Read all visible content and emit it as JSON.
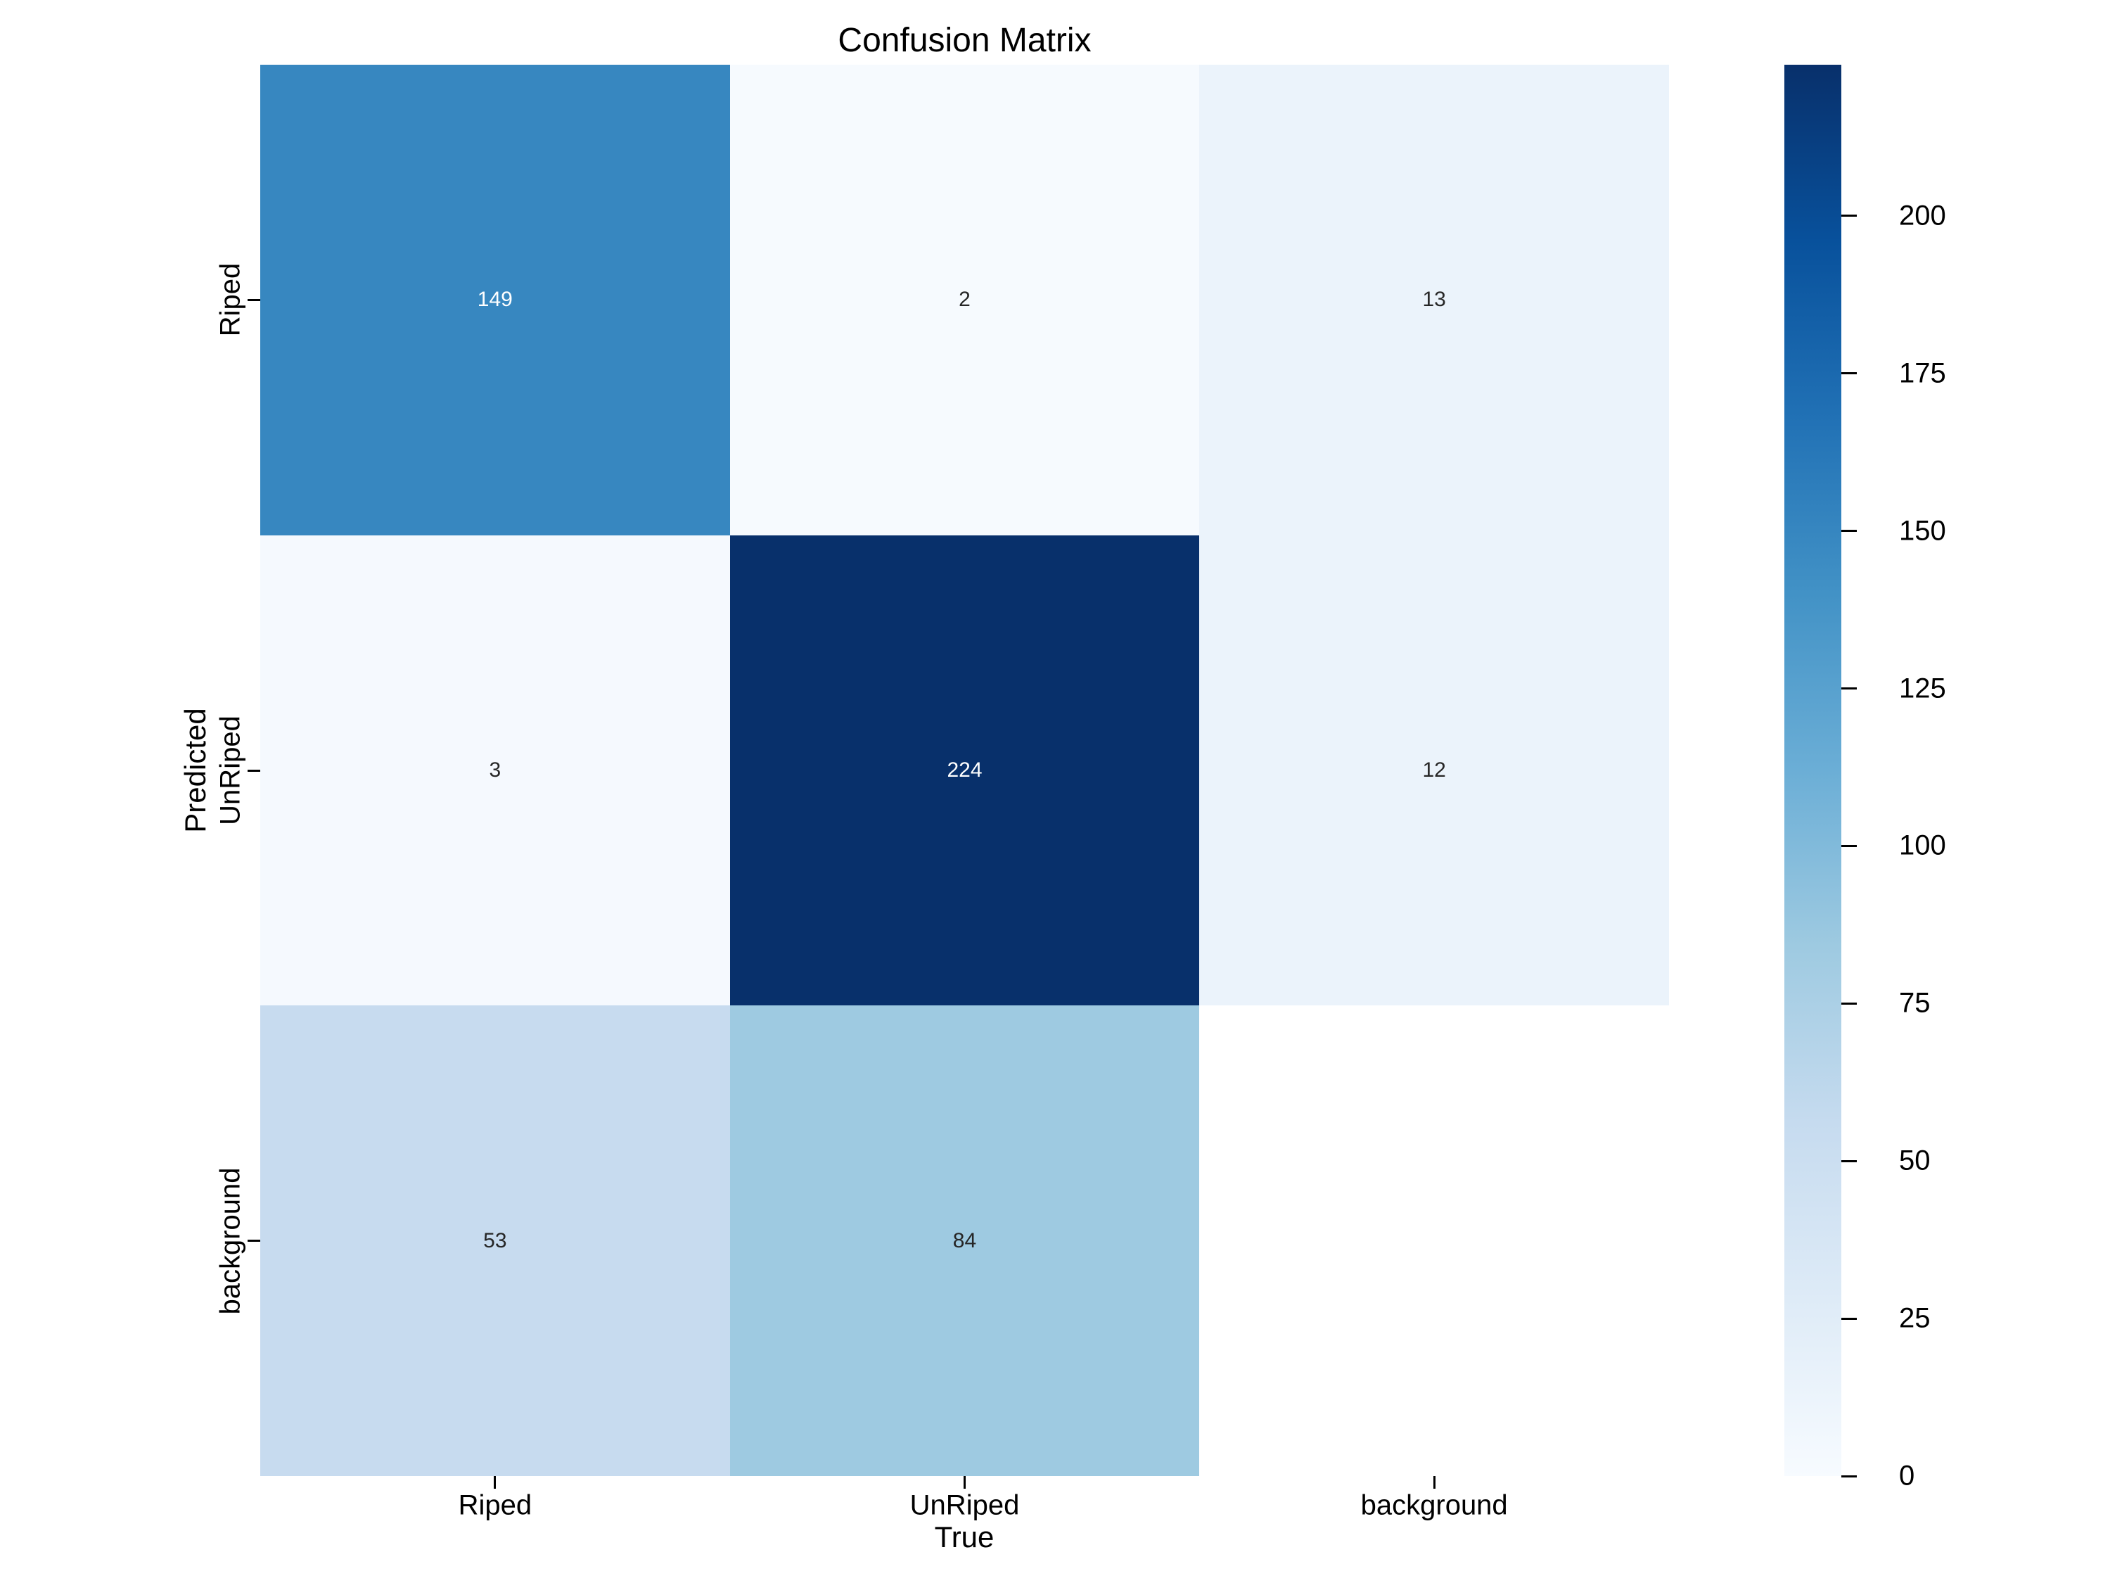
{
  "title": "Confusion Matrix",
  "chart_data": {
    "type": "heatmap",
    "title": "Confusion Matrix",
    "xlabel": "True",
    "ylabel": "Predicted",
    "x_categories": [
      "Riped",
      "UnRiped",
      "background"
    ],
    "y_categories": [
      "Riped",
      "UnRiped",
      "background"
    ],
    "matrix": [
      [
        149,
        2,
        13
      ],
      [
        3,
        224,
        12
      ],
      [
        53,
        84,
        null
      ]
    ],
    "annotations": [
      [
        "149",
        "2",
        "13"
      ],
      [
        "3",
        "224",
        "12"
      ],
      [
        "53",
        "84",
        ""
      ]
    ],
    "cell_colors": [
      [
        "#3787c0",
        "#f6fafe",
        "#ebf3fb"
      ],
      [
        "#f5f9fe",
        "#08306b",
        "#ebf3fb"
      ],
      [
        "#c7dbef",
        "#9ecae1",
        "#ffffff"
      ]
    ],
    "cell_text_colors": [
      [
        "#ffffff",
        "#262626",
        "#262626"
      ],
      [
        "#262626",
        "#ffffff",
        "#262626"
      ],
      [
        "#262626",
        "#262626",
        "#262626"
      ]
    ],
    "colormap": "Blues",
    "vmin": 0,
    "vmax": 224,
    "grid": false,
    "legend_position": "right-colorbar",
    "colorbar": {
      "ticks": [
        0,
        25,
        50,
        75,
        100,
        125,
        150,
        175,
        200
      ],
      "gradient_stops": [
        {
          "pos": 0.0,
          "color": "#f7fbff"
        },
        {
          "pos": 0.125,
          "color": "#deebf7"
        },
        {
          "pos": 0.25,
          "color": "#c6dbef"
        },
        {
          "pos": 0.375,
          "color": "#9ecae1"
        },
        {
          "pos": 0.5,
          "color": "#6baed6"
        },
        {
          "pos": 0.625,
          "color": "#4292c6"
        },
        {
          "pos": 0.75,
          "color": "#2171b5"
        },
        {
          "pos": 0.875,
          "color": "#08519c"
        },
        {
          "pos": 1.0,
          "color": "#08306b"
        }
      ]
    }
  }
}
